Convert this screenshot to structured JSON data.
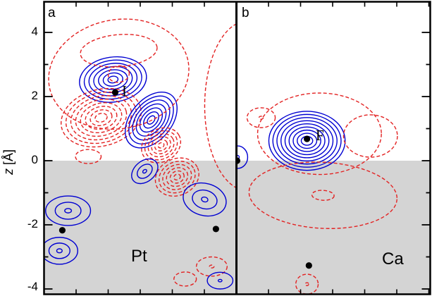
{
  "figure": {
    "ylabel_symbol": "z",
    "ylabel_unit": " [Å]"
  },
  "chart_data": {
    "type": "heatmap",
    "plot_kind": "contour plot, two panels (charge-density difference style: solid blue and dashed red contour lines over a gray substrate region)",
    "ylabel": "z [Å]",
    "ylim": [
      -4.2,
      5.0
    ],
    "xlabel": "",
    "grid": false,
    "yticks_labels": [
      "4",
      "2",
      "0",
      "-2",
      "-4"
    ],
    "yticks_values": [
      4,
      2,
      0,
      -2,
      -4
    ],
    "yticks_minor": [
      3,
      1,
      -1,
      -3
    ],
    "x_tick_spacing": 1,
    "substrate_region": {
      "z_max": 0,
      "fill": "#d4d4d4"
    },
    "contour_styles": {
      "blue": "solid",
      "red": "dashed"
    },
    "colors": {
      "accumulation": "#0000d2",
      "depletion": "#e32222",
      "atom": "#000000",
      "frame": "#000000"
    },
    "panels": [
      {
        "label": "a",
        "adsorbate": "I",
        "substrate": "Pt",
        "atoms": [
          {
            "x": 2.22,
            "z": 2.13
          },
          {
            "x": 0.57,
            "z": -2.17
          },
          {
            "x": 5.36,
            "z": -2.13
          }
        ],
        "features": [
          {
            "x": 2.15,
            "z": 2.53,
            "rx": 1.05,
            "rz": 0.7,
            "rot": -8,
            "rings": 7,
            "type": "accumulation"
          },
          {
            "x": 1.78,
            "z": 1.34,
            "rx": 1.27,
            "rz": 0.88,
            "rot": -15,
            "rings": 8,
            "type": "depletion"
          },
          {
            "x": 3.34,
            "z": 1.27,
            "rx": 1.0,
            "rz": 0.64,
            "rot": -50,
            "rings": 7,
            "type": "accumulation"
          },
          {
            "x": 3.65,
            "z": 0.48,
            "rx": 0.64,
            "rz": 0.51,
            "rot": -30,
            "rings": 6,
            "type": "depletion"
          },
          {
            "x": 4.15,
            "z": -0.51,
            "rx": 0.7,
            "rz": 0.57,
            "rot": -25,
            "rings": 6,
            "type": "depletion"
          },
          {
            "x": 3.14,
            "z": -0.33,
            "rx": 0.46,
            "rz": 0.32,
            "rot": -40,
            "rings": 3,
            "type": "accumulation"
          },
          {
            "x": 5.01,
            "z": -1.21,
            "rx": 0.68,
            "rz": 0.5,
            "rot": 15,
            "rings": 3,
            "type": "accumulation"
          },
          {
            "x": 0.75,
            "z": -1.56,
            "rx": 0.7,
            "rz": 0.46,
            "rot": 0,
            "rings": 3,
            "type": "accumulation"
          },
          {
            "x": 0.48,
            "z": -2.81,
            "rx": 0.57,
            "rz": 0.42,
            "rot": 0,
            "rings": 3,
            "type": "accumulation"
          },
          {
            "x": 2.33,
            "z": 2.7,
            "rx": 2.2,
            "rz": 1.7,
            "rot": -10,
            "rings": 2,
            "type": "depletion"
          },
          {
            "x": 2.33,
            "z": 3.43,
            "rx": 1.2,
            "rz": 0.5,
            "rot": -5,
            "rings": 1,
            "type": "depletion"
          },
          {
            "x": 1.38,
            "z": 0.13,
            "rx": 0.4,
            "rz": 0.22,
            "rot": 0,
            "rings": 1,
            "type": "depletion"
          },
          {
            "x": 5.23,
            "z": -3.3,
            "rx": 0.48,
            "rz": 0.3,
            "rot": 0,
            "rings": 2,
            "type": "depletion"
          },
          {
            "x": 4.4,
            "z": -3.69,
            "rx": 0.35,
            "rz": 0.22,
            "rot": 0,
            "rings": 1,
            "type": "depletion"
          },
          {
            "x": 6.33,
            "z": 1.71,
            "rx": 1.32,
            "rz": 2.64,
            "rot": 0,
            "rings": 1,
            "type": "depletion"
          },
          {
            "x": 5.49,
            "z": -3.74,
            "rx": 0.4,
            "rz": 0.26,
            "rot": 0,
            "rings": 2,
            "type": "accumulation"
          }
        ]
      },
      {
        "label": "b",
        "adsorbate": "F",
        "substrate": "Ca",
        "atoms": [
          {
            "x": 2.2,
            "z": 0.68
          },
          {
            "x": 0.02,
            "z": 0.0
          },
          {
            "x": 2.26,
            "z": -3.27
          }
        ],
        "features": [
          {
            "x": 2.2,
            "z": 0.62,
            "rx": 1.19,
            "rz": 0.92,
            "rot": 0,
            "rings": 9,
            "type": "accumulation"
          },
          {
            "x": 0.77,
            "z": 1.34,
            "rx": 0.44,
            "rz": 0.31,
            "rot": 0,
            "rings": 2,
            "type": "depletion"
          },
          {
            "x": 2.59,
            "z": 0.84,
            "rx": 1.93,
            "rz": 1.27,
            "rot": 0,
            "rings": 1,
            "type": "depletion"
          },
          {
            "x": 4.18,
            "z": 0.77,
            "rx": 0.84,
            "rz": 0.66,
            "rot": 0,
            "rings": 1,
            "type": "depletion"
          },
          {
            "x": 2.7,
            "z": -1.08,
            "rx": 2.31,
            "rz": 1.03,
            "rot": 3,
            "rings": 2,
            "type": "depletion"
          },
          {
            "x": 0.04,
            "z": 0.11,
            "rx": 0.31,
            "rz": 0.35,
            "rot": 0,
            "rings": 2,
            "type": "accumulation"
          },
          {
            "x": 2.2,
            "z": -3.85,
            "rx": 0.35,
            "rz": 0.31,
            "rot": 0,
            "rings": 2,
            "type": "depletion"
          }
        ]
      }
    ]
  }
}
